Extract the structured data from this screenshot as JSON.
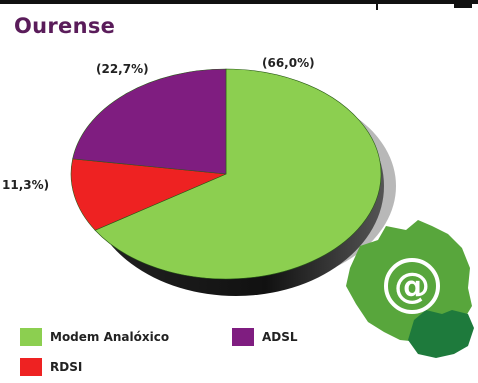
{
  "title": "Ourense",
  "chart_data": {
    "type": "pie",
    "title": "Ourense",
    "slices": [
      {
        "name": "Modem Analóxico",
        "value": 66.0,
        "label": "(66,0%)",
        "color": "#8ccf50"
      },
      {
        "name": "RDSI",
        "value": 11.3,
        "label": "11,3%)",
        "color": "#ee2222"
      },
      {
        "name": "ADSL",
        "value": 22.7,
        "label": "(22,7%)",
        "color": "#7f1d80"
      }
    ]
  },
  "legend": {
    "items": [
      {
        "label": "Modem Analóxico",
        "color": "#8ccf50"
      },
      {
        "label": "ADSL",
        "color": "#7f1d80"
      },
      {
        "label": "RDSI",
        "color": "#ee2222"
      }
    ]
  },
  "map_icon": {
    "symbol": "@",
    "fill": "#58a63c",
    "dark": "#1e7a3c"
  }
}
